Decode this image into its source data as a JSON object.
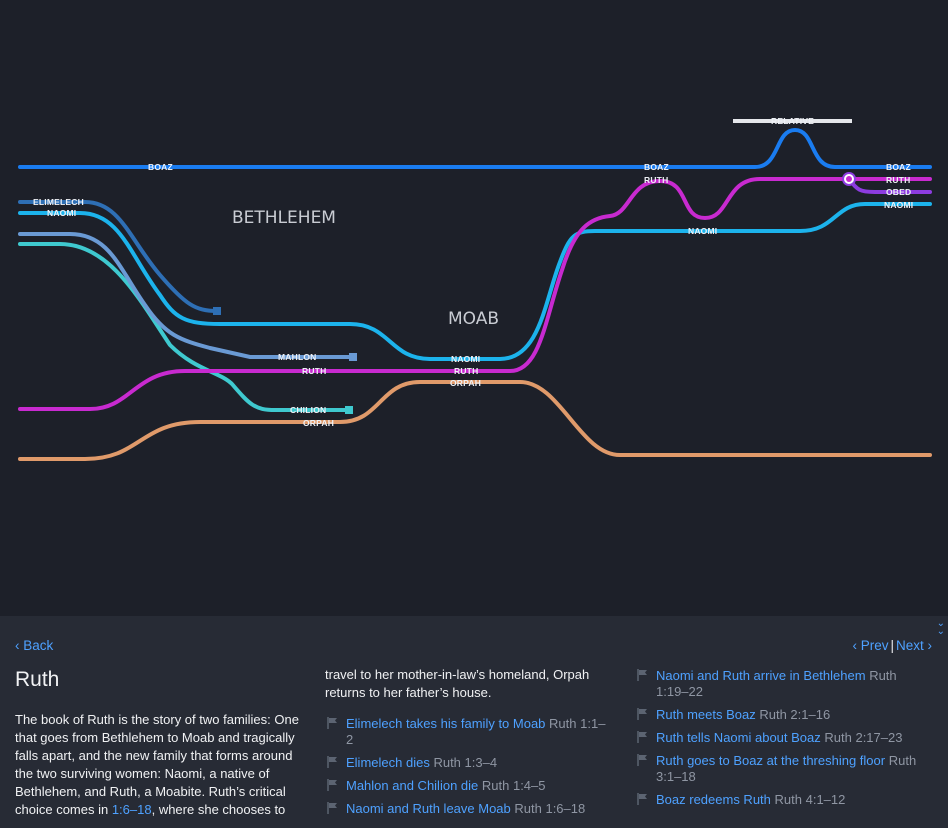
{
  "diagram": {
    "places": {
      "bethlehem": "BETHLEHEM",
      "moab": "MOAB"
    },
    "labels": {
      "boaz_left": "BOAZ",
      "elimelech": "ELIMELECH",
      "naomi_left": "NAOMI",
      "mahlon": "MAHLON",
      "ruth_mid": "RUTH",
      "chilion": "CHILION",
      "orpah_mid": "ORPAH",
      "naomi_moab": "NAOMI",
      "ruth_moab": "RUTH",
      "orpah_moab": "ORPAH",
      "boaz_top": "BOAZ",
      "ruth_top": "RUTH",
      "naomi_right_mid": "NAOMI",
      "relative": "RELATIVE",
      "boaz_right": "BOAZ",
      "ruth_right": "RUTH",
      "obed": "OBED",
      "naomi_right": "NAOMI"
    },
    "colors": {
      "boaz": "#1a7cf0",
      "elimelech": "#2e6fb5",
      "naomi": "#1cb3ec",
      "mahlon": "#6a9ad4",
      "chilion": "#3fc9cf",
      "ruth": "#c82ad0",
      "orpah": "#e09a6a",
      "obed": "#8d3ce0",
      "relative": "#e5e7eb"
    }
  },
  "panel": {
    "back": "‹ Back",
    "prev": "‹ Prev",
    "separator": "|",
    "next": "Next ›",
    "title": "Ruth",
    "description_before": "The book of Ruth is the story of two families: One that goes from Bethlehem to Moab and tragically falls apart, and the new family that forms around the two surviving women: Naomi, a native of Bethlehem, and Ruth, a Moabite. Ruth’s critical choice comes in ",
    "description_ref": "1:6–18",
    "description_after": ", where she chooses to",
    "description_cont": "travel to her mother-in-law’s homeland, Orpah returns to her father’s house.",
    "events_col2": [
      {
        "title": "Elimelech takes his family to Moab",
        "ref": "Ruth 1:1–2"
      },
      {
        "title": "Elimelech dies",
        "ref": "Ruth 1:3–4"
      },
      {
        "title": "Mahlon and Chilion die",
        "ref": "Ruth 1:4–5"
      },
      {
        "title": "Naomi and Ruth leave Moab",
        "ref": "Ruth 1:6–18"
      }
    ],
    "events_col3": [
      {
        "title": "Naomi and Ruth arrive in Bethlehem",
        "ref": "Ruth 1:19–22"
      },
      {
        "title": "Ruth meets Boaz",
        "ref": "Ruth 2:1–16"
      },
      {
        "title": "Ruth tells Naomi about Boaz",
        "ref": "Ruth 2:17–23"
      },
      {
        "title": "Ruth goes to Boaz at the threshing floor",
        "ref": "Ruth 3:1–18"
      },
      {
        "title": "Boaz redeems Ruth",
        "ref": "Ruth 4:1–12"
      }
    ]
  }
}
